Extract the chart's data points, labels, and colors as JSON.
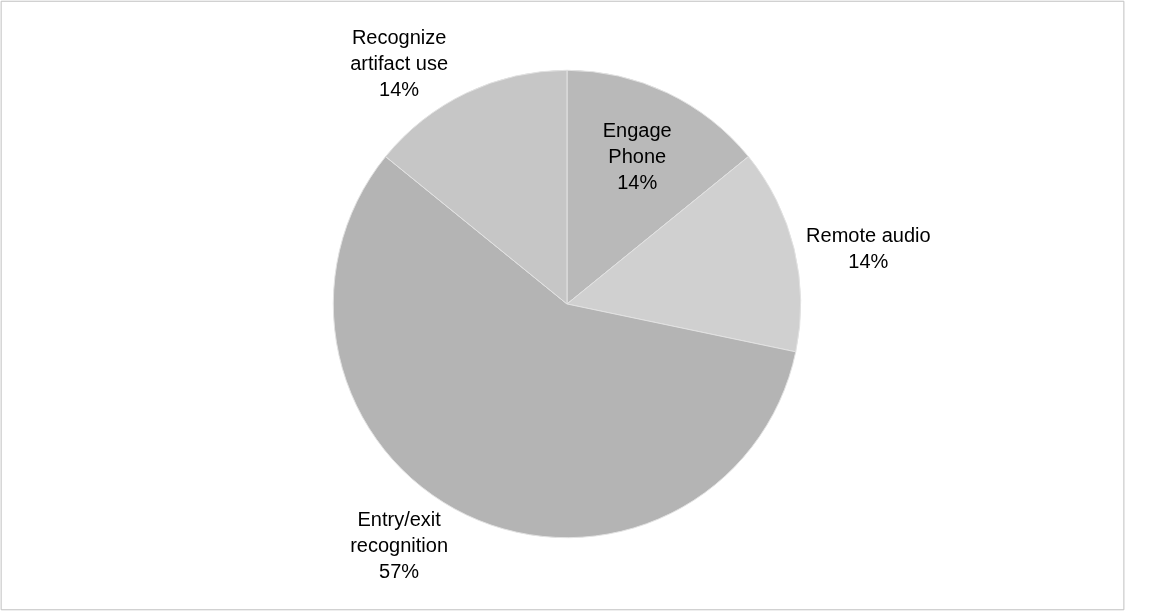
{
  "chart_data": {
    "type": "pie",
    "categories": [
      "Engage Phone",
      "Remote audio",
      "Entry/exit recognition",
      "Recognize artifact use"
    ],
    "values": [
      14,
      14,
      57,
      14
    ],
    "value_labels": [
      "14%",
      "14%",
      "57%",
      "14%"
    ],
    "colors": [
      "#b9b9b9",
      "#d0d0d0",
      "#b4b4b4",
      "#c6c6c6"
    ],
    "legend": false
  }
}
